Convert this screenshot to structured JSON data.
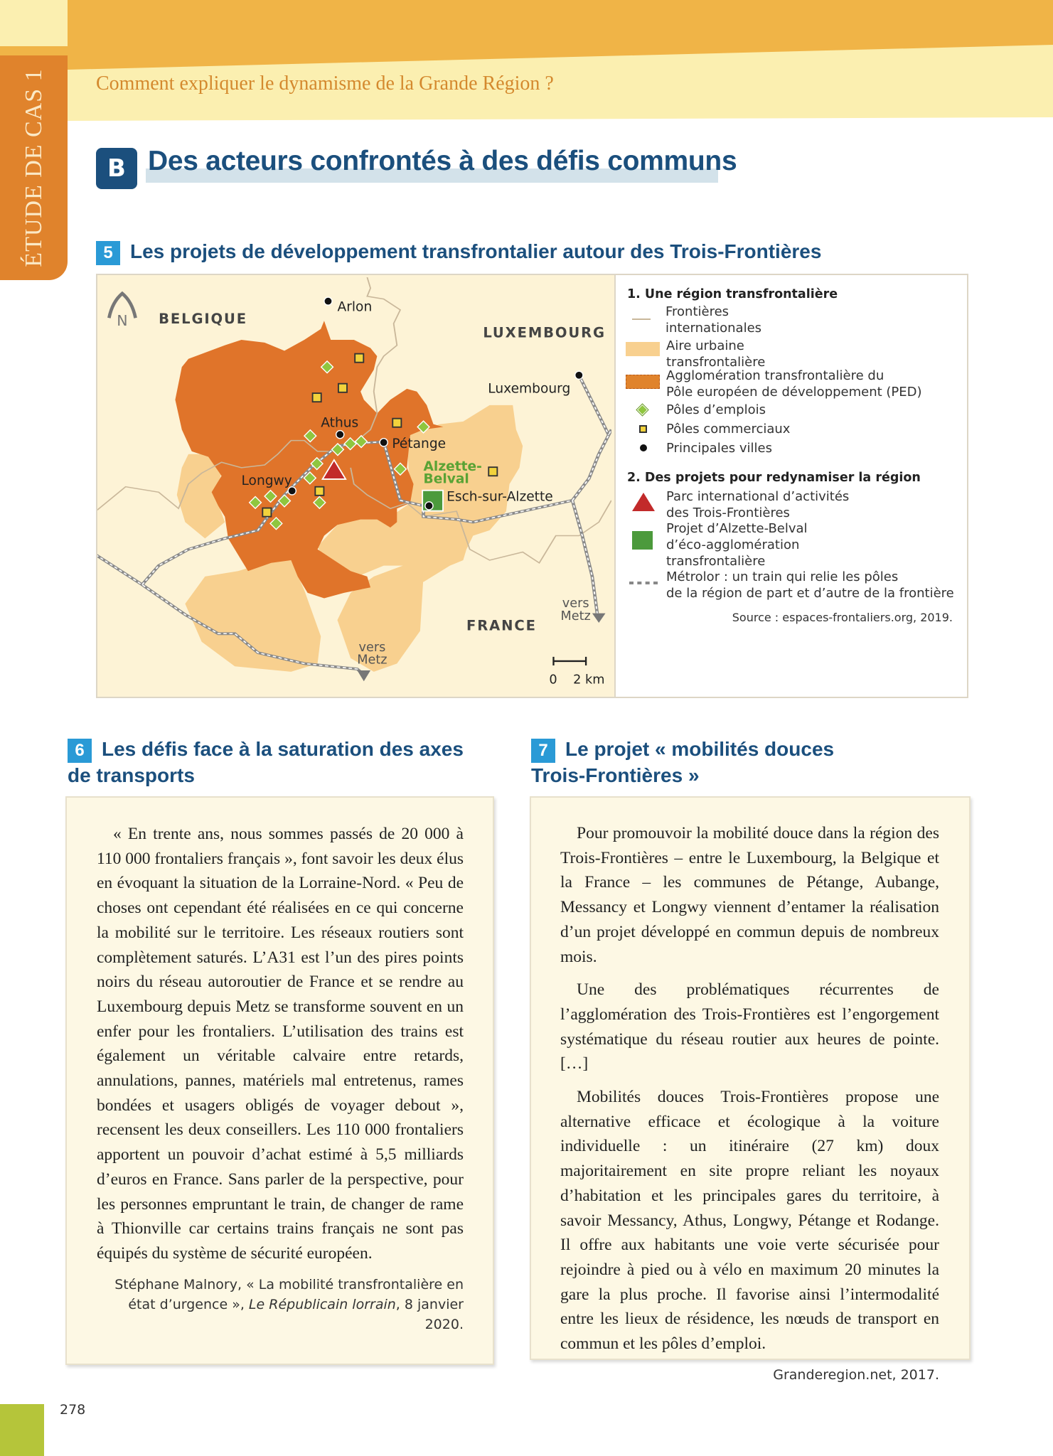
{
  "header": {
    "side_tab": "ÉTUDE DE CAS 1",
    "question": "Comment expliquer le dynamisme de la Grande Région ?"
  },
  "section": {
    "badge": "B",
    "title": "Des acteurs confrontés à des défis communs"
  },
  "doc5": {
    "number": "5",
    "title": "Les projets de développement transfrontalier autour des Trois-Frontières",
    "map": {
      "north": "N",
      "countries": {
        "belgique": "BELGIQUE",
        "luxembourg": "LUXEMBOURG",
        "france": "FRANCE"
      },
      "cities": {
        "arlon": "Arlon",
        "athus": "Athus",
        "petange": "Pétange",
        "longwy": "Longwy",
        "esch": "Esch-sur-Alzette",
        "luxembourg": "Luxembourg"
      },
      "alzette1": "Alzette-",
      "alzette2": "Belval",
      "vers": "vers",
      "metz": "Metz",
      "scale": "0    2 km"
    },
    "legend": {
      "title1": "1. Une région transfrontalière",
      "frontieres": [
        "Frontières",
        "internationales"
      ],
      "aire": [
        "Aire urbaine",
        "transfrontalière"
      ],
      "agglo": [
        "Agglomération transfrontalière du",
        "Pôle européen de développement (PED)"
      ],
      "emplois": "Pôles d’emplois",
      "commerciaux": "Pôles commerciaux",
      "villes": "Principales villes",
      "title2": "2. Des projets pour redynamiser la région",
      "parc": [
        "Parc international d’activités",
        "des Trois-Frontières"
      ],
      "projet": [
        "Projet d’Alzette-Belval",
        "d’éco-agglomération",
        "transfrontalière"
      ],
      "metrolor": [
        "Métrolor : un train qui relie les pôles",
        "de la région de part et d’autre de la frontière"
      ]
    },
    "source": "Source : espaces-frontaliers.org, 2019.",
    "colors": {
      "urban": "#f8d08f",
      "ped": "#e0742a",
      "emploi": "#8fc63f",
      "commerce": "#f2d23c",
      "parc": "#c22a2a",
      "projet": "#4c9a3c",
      "rail": "#8a8a8a"
    }
  },
  "doc6": {
    "number": "6",
    "title_lines": [
      "Les défis face à la saturation des axes",
      "de transports"
    ],
    "paragraphs": [
      "« En trente ans, nous sommes passés de 20 000 à 110 000 frontaliers français », font savoir les deux élus en évoquant la situation de la Lorraine-Nord. « Peu de choses ont cependant été réalisées en ce qui concerne la mobilité sur le territoire. Les réseaux routiers sont complètement saturés. L’A31 est l’un des pires points noirs du réseau autoroutier de France et se rendre au Luxembourg depuis Metz se transforme souvent en un enfer pour les frontaliers. L’utilisation des trains est également un véritable calvaire entre retards, annulations, pannes, matériels mal entretenus, rames bondées et usagers obligés de voyager debout », recensent les deux conseillers. Les 110 000 frontaliers apportent un pouvoir d’achat estimé à 5,5 milliards d’euros en France. Sans parler de la perspective, pour les personnes empruntant le train, de changer de rame à Thionville car certains trains français ne sont pas équipés du système de sécurité européen."
    ],
    "source_pre": "Stéphane Malnory, « La mobilité transfrontalière en état d’urgence », ",
    "source_journal": "Le Républicain lorrain",
    "source_post": ", 8 janvier 2020."
  },
  "doc7": {
    "number": "7",
    "title_lines": [
      "Le projet « mobilités douces",
      "Trois-Frontières »"
    ],
    "paragraphs": [
      "Pour promouvoir la mobilité douce dans la région des Trois-Frontières – entre le Luxembourg, la Belgique et la France – les communes de Pétange, Aubange, Messancy et Longwy viennent d’entamer la réalisation d’un projet développé en commun depuis de nombreux mois.",
      "Une des problématiques récurrentes de l’agglomération des Trois-Frontières est l’engorgement systématique du réseau routier aux heures de pointe. […]",
      "Mobilités douces Trois-Frontières propose une alternative efficace et écologique à la voiture individuelle : un itinéraire (27 km) doux majoritairement en site propre reliant les noyaux d’habitation et les principales gares du territoire, à savoir Messancy, Athus, Longwy, Pétange et Rodange. Il offre aux habitants une voie verte sécurisée pour rejoindre à pied ou à vélo en maximum 20 minutes la gare la plus proche. Il favorise ainsi l’intermodalité entre les lieux de résidence, les nœuds de transport en commun et les pôles d’emploi."
    ],
    "source": "Granderegion.net, 2017."
  },
  "footer": {
    "page": "278"
  }
}
